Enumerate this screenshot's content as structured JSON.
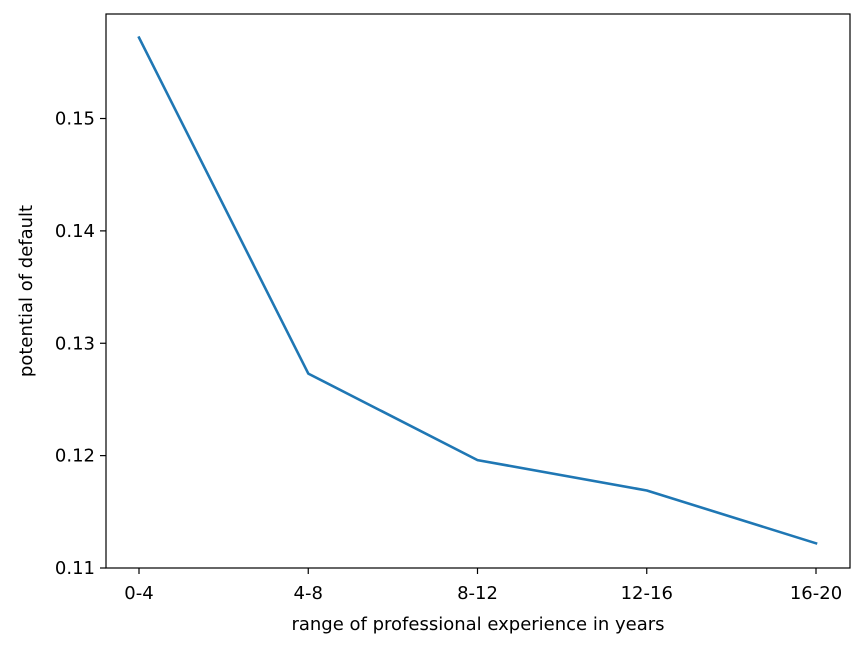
{
  "chart_data": {
    "type": "line",
    "title": "",
    "xlabel": "range of professional experience in years",
    "ylabel": "potential of default",
    "categories": [
      "0-4",
      "4-8",
      "8-12",
      "12-16",
      "16-20"
    ],
    "series": [
      {
        "values": [
          0.1572,
          0.1273,
          0.1196,
          0.1169,
          0.1122
        ],
        "color": "#1f77b4"
      }
    ],
    "ylim": [
      0.11,
      0.1593
    ],
    "yticks": [
      "0.11",
      "0.12",
      "0.13",
      "0.14",
      "0.15"
    ],
    "grid": false,
    "legend": "none"
  }
}
